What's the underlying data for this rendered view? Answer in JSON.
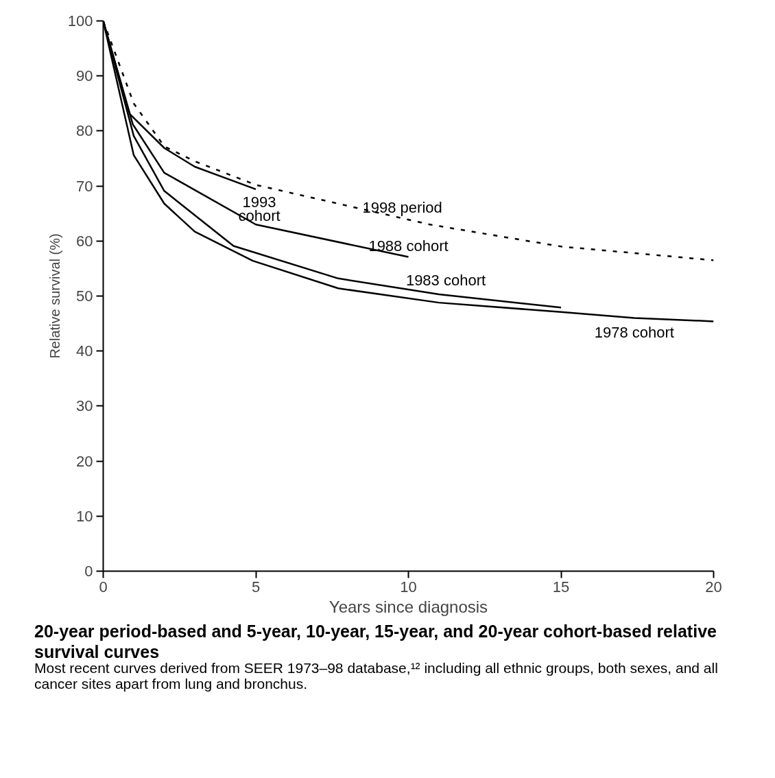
{
  "chart_data": {
    "type": "line",
    "title": "20-year period-based and 5-year, 10-year, 15-year, and 20-year cohort-based relative survival curves",
    "annotations": [
      "Most recent curves derived from SEER 1973–98 database,¹² including all ethnic groups, both sexes, and all cancer sites apart from lung and bronchus."
    ],
    "xlabel": "Years since diagnosis",
    "ylabel": "Relative survival (%)",
    "xlim": [
      0,
      20
    ],
    "xticks": [
      0,
      5,
      10,
      15,
      20
    ],
    "ylim": [
      0,
      100
    ],
    "yticks": [
      0,
      10,
      20,
      30,
      40,
      50,
      60,
      70,
      80,
      90,
      100
    ],
    "grid": false,
    "legend": false,
    "marker": "none",
    "series": [
      {
        "name": "1998 period",
        "color": "#000000",
        "line_style": "dashed",
        "x": [
          0,
          1,
          2,
          3,
          5,
          10.7,
          15,
          20
        ],
        "values": [
          100,
          85,
          77.2,
          74.5,
          70.2,
          63,
          59,
          56.5
        ]
      },
      {
        "name": "1993\ncohort",
        "color": "#000000",
        "line_style": "solid",
        "x": [
          0,
          0.87,
          2,
          3,
          5
        ],
        "values": [
          100,
          83.1,
          76.9,
          73.5,
          69.4
        ]
      },
      {
        "name": "1988 cohort",
        "color": "#000000",
        "line_style": "solid",
        "x": [
          0,
          0.97,
          2,
          5,
          10
        ],
        "values": [
          100,
          81.2,
          72.4,
          63,
          57.1
        ]
      },
      {
        "name": "1983 cohort",
        "color": "#000000",
        "line_style": "solid",
        "x": [
          0,
          1,
          2,
          4.27,
          7.7,
          11,
          15
        ],
        "values": [
          100,
          79.1,
          69.1,
          59.1,
          53.2,
          50.3,
          47.9
        ]
      },
      {
        "name": "1978 cohort",
        "color": "#000000",
        "line_style": "solid",
        "x": [
          0,
          1,
          2,
          3,
          4.9,
          7.7,
          11,
          15,
          17.4,
          20
        ],
        "values": [
          100,
          75.6,
          66.8,
          61.7,
          56.4,
          51.4,
          48.8,
          47.1,
          46,
          45.4
        ]
      }
    ]
  }
}
